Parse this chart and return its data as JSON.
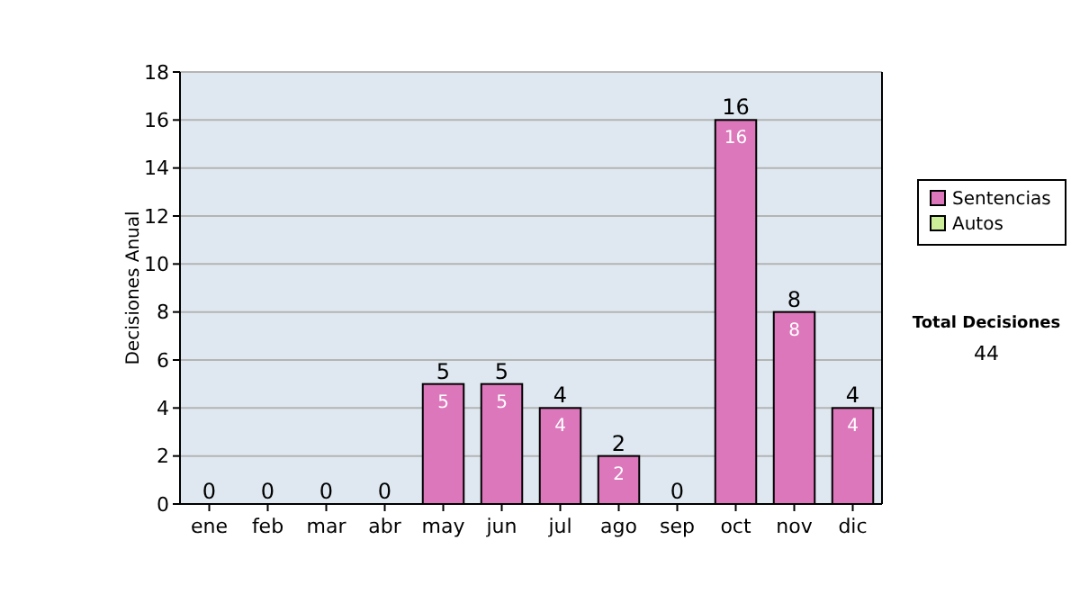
{
  "chart_data": {
    "type": "bar",
    "ylabel": "Decisiones Anual",
    "categories": [
      "ene",
      "feb",
      "mar",
      "abr",
      "may",
      "jun",
      "jul",
      "ago",
      "sep",
      "oct",
      "nov",
      "dic"
    ],
    "series": [
      {
        "name": "Sentencias",
        "color": "#dd77bb",
        "values": [
          0,
          0,
          0,
          0,
          5,
          5,
          4,
          2,
          0,
          16,
          8,
          4
        ],
        "value_labels": [
          null,
          null,
          null,
          null,
          "5",
          "5",
          "4",
          "2",
          null,
          "16",
          "8",
          "4"
        ]
      },
      {
        "name": "Autos",
        "color": "#ccee99",
        "values": [
          0,
          0,
          0,
          0,
          0,
          0,
          0,
          0,
          0,
          0,
          0,
          0
        ]
      }
    ],
    "totals": [
      "0",
      "0",
      "0",
      "0",
      "5",
      "5",
      "4",
      "2",
      "0",
      "16",
      "8",
      "4"
    ],
    "ylim": [
      0,
      18
    ],
    "yticks": [
      0,
      2,
      4,
      6,
      8,
      10,
      12,
      14,
      16,
      18
    ],
    "grid": "y",
    "legend": "right",
    "annotations": [
      "Total Decisiones",
      "44"
    ]
  }
}
